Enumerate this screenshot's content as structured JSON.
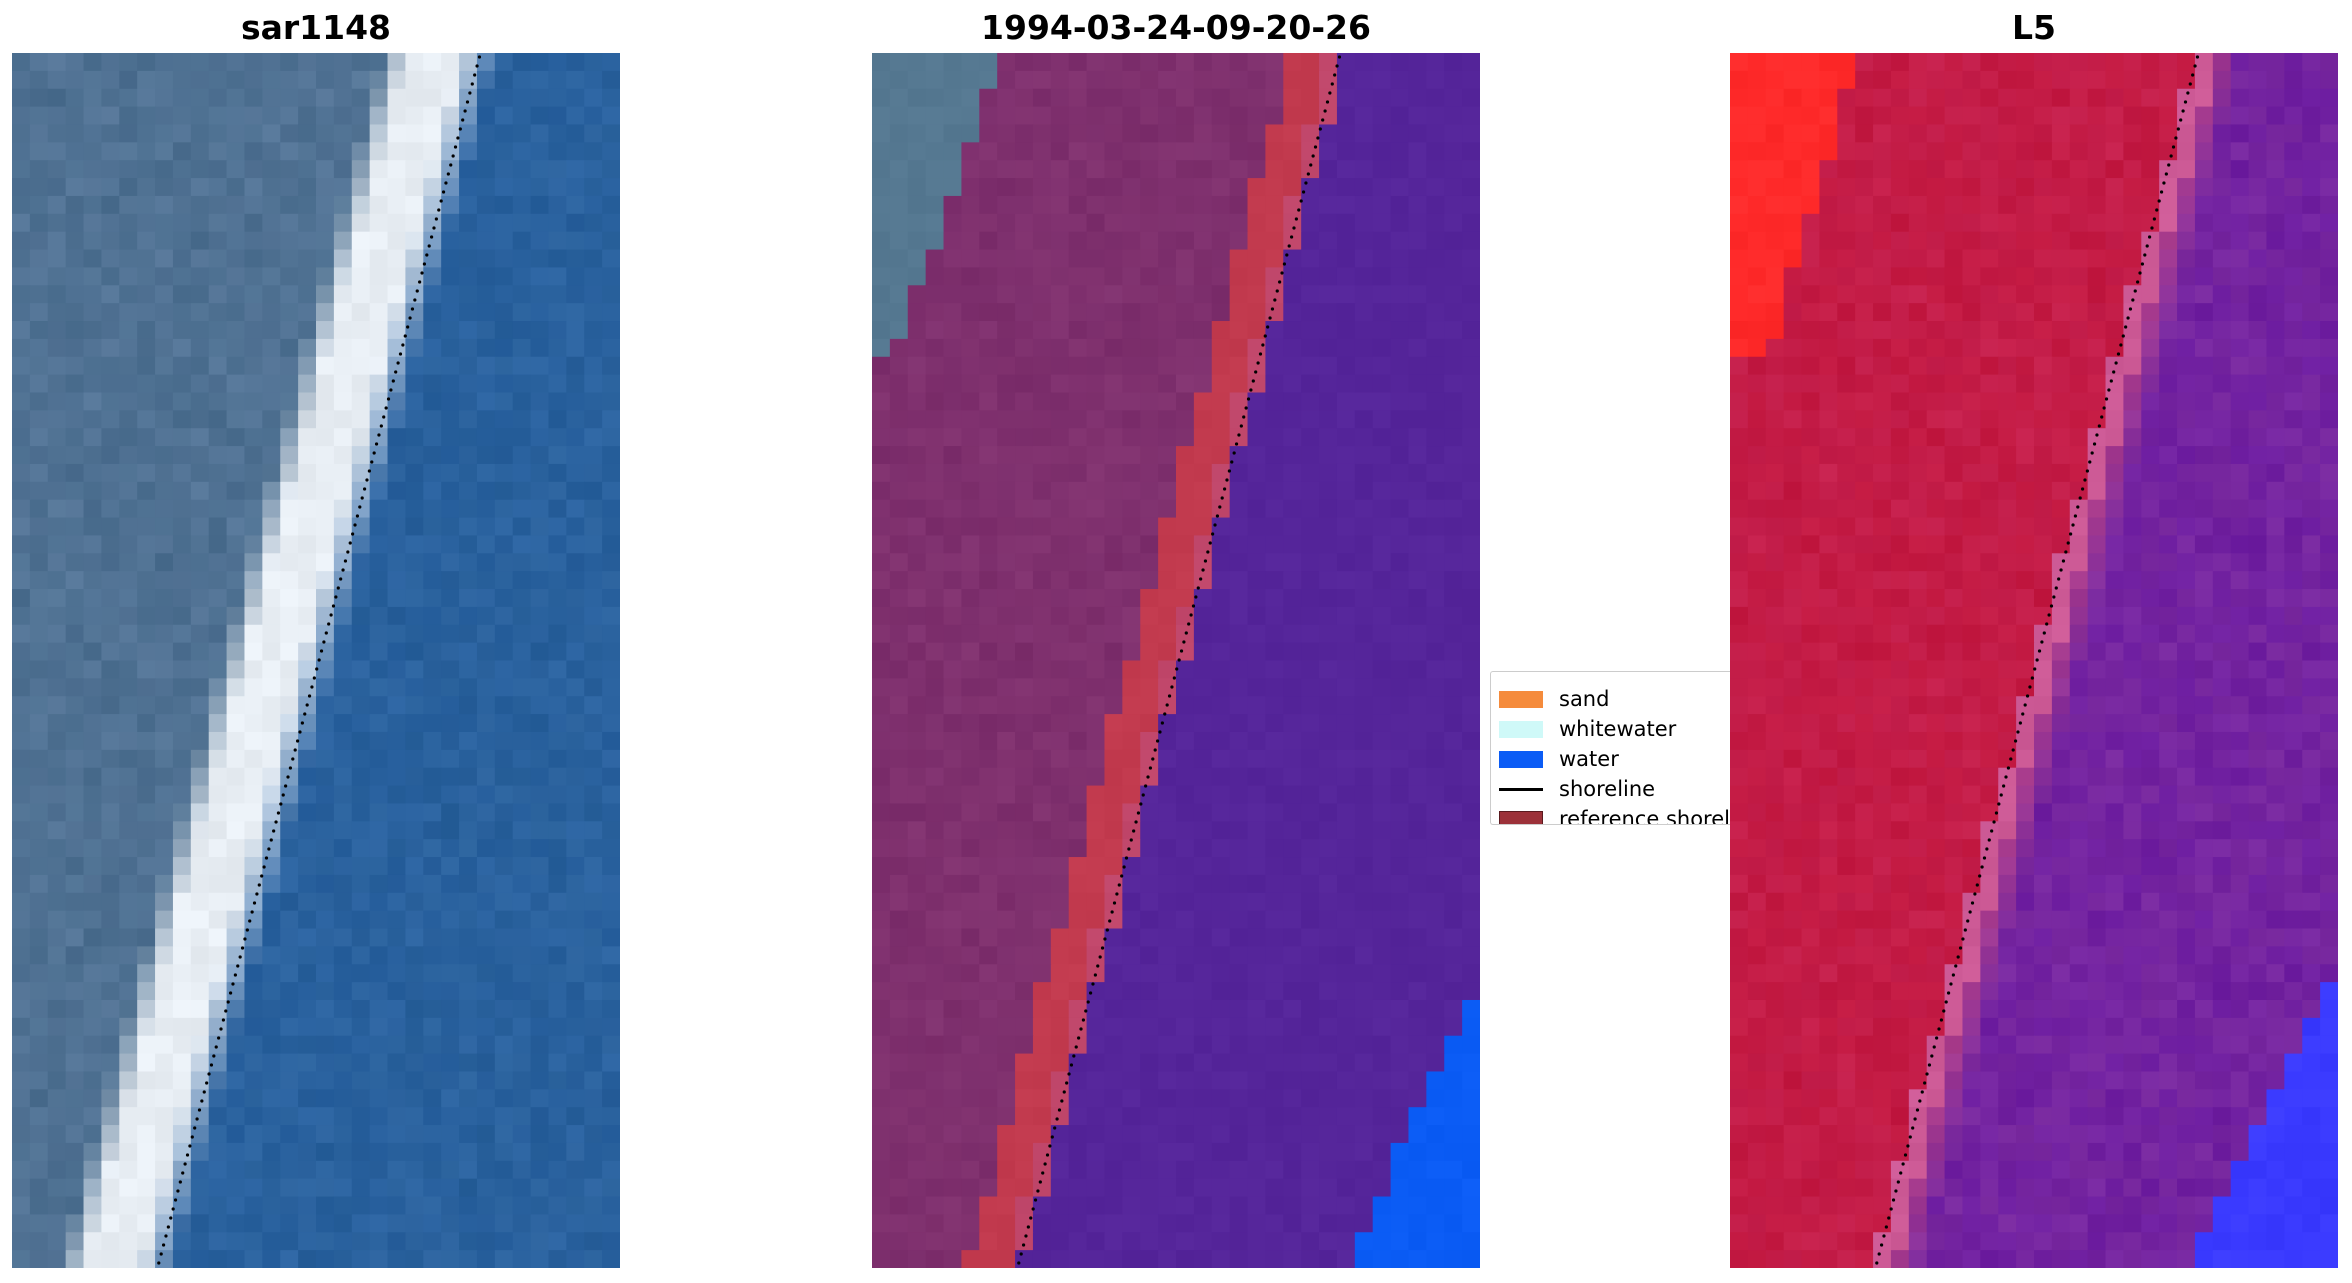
{
  "panels": [
    {
      "title": "sar1148"
    },
    {
      "title": "1994-03-24-09-20-26"
    },
    {
      "title": "L5"
    }
  ],
  "legend": {
    "items": [
      {
        "label": "sand",
        "color": "#f58b3c",
        "kind": "patch"
      },
      {
        "label": "whitewater",
        "color": "#cff9f8",
        "kind": "patch"
      },
      {
        "label": "water",
        "color": "#0b5cf5",
        "kind": "patch"
      },
      {
        "label": "shoreline",
        "color": "#000000",
        "kind": "line"
      },
      {
        "label": "reference shoreline",
        "color": "#9c3139",
        "kind": "patch"
      }
    ]
  },
  "colors": {
    "rgb_land": "#4b6e8f",
    "rgb_surf": "#e8eef4",
    "rgb_water": "#2a62a0",
    "class_land": "#7a2c6a",
    "class_reference": "#c23a4e",
    "class_water": "#55259a",
    "class_water_patch": "#0b5cf5",
    "index_land": "#c21840",
    "index_land_bright": "#ff2a2a",
    "index_water": "#7a2aa0",
    "index_water_blue": "#3a3aff"
  }
}
